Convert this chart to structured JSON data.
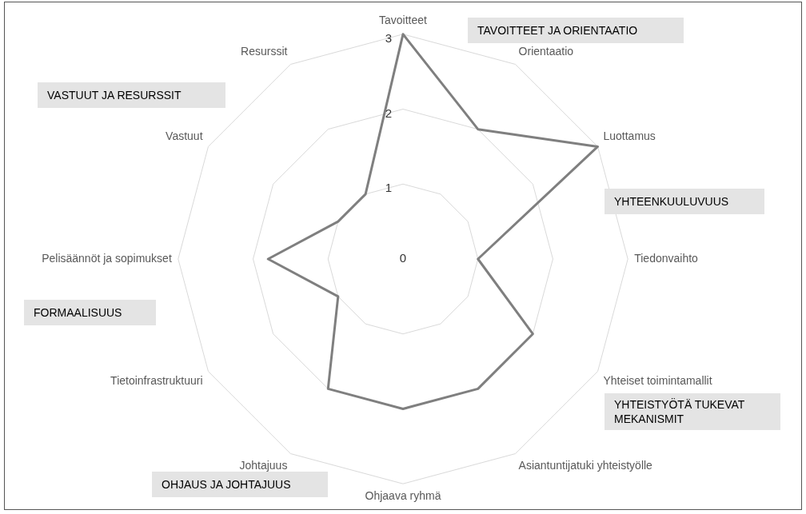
{
  "chart_data": {
    "type": "radar",
    "categories": [
      "Tavoitteet",
      "Orientaatio",
      "Luottamus",
      "Tiedonvaihto",
      "Yhteiset toimintamallit",
      "Asiantuntijatuki yhteistyölle",
      "Ohjaava ryhmä",
      "Johtajuus",
      "Tietoinfrastruktuuri",
      "Pelisäännöt ja sopimukset",
      "Vastuut",
      "Resurssit"
    ],
    "series": [
      {
        "color": "#7f7f7f",
        "values": [
          3,
          2,
          3,
          1,
          2,
          2,
          2,
          2,
          1,
          1.8,
          1,
          1
        ]
      }
    ],
    "ylim": [
      0,
      3
    ],
    "yticks": [
      0,
      1,
      2,
      3
    ],
    "grid": true,
    "legend": false,
    "marker": "none",
    "annotations": [
      "TAVOITTEET JA ORIENTAATIO",
      "YHTEENKUULUVUUS",
      "YHTEISTYÖTÄ TUKEVAT MEKANISMIT",
      "OHJAUS JA JOHTAJUUS",
      "FORMAALISUUS",
      "VASTUUT JA RESURSSIT"
    ]
  }
}
